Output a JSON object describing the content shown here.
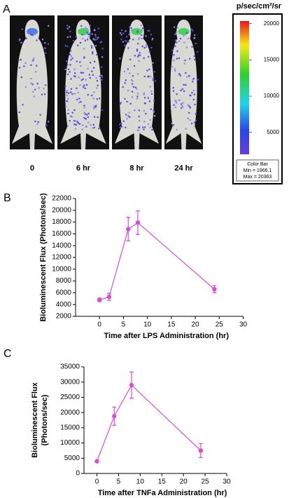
{
  "panel_a": {
    "panel_label": "A",
    "labels": [
      "0",
      "6 hr",
      "8 hr",
      "24 hr"
    ],
    "colorbar": {
      "unit": "p/sec/cm²/sr",
      "title": "Color Bar",
      "min": {
        "value": 1966.1,
        "label": "Min = 1966.1"
      },
      "max": {
        "value": 20363,
        "label": "Max = 20363"
      },
      "ticks": [
        5000,
        10000,
        15000,
        20000
      ]
    }
  },
  "chart_data": [
    {
      "type": "line",
      "panel_label": "B",
      "xlabel": "Time after LPS Administration (hr)",
      "ylabel": "Bioluminescent Flux (Photons/sec)",
      "xlim": [
        -5,
        30
      ],
      "xticks": [
        0,
        5,
        10,
        15,
        20,
        25,
        30
      ],
      "ylim": [
        2000,
        22000
      ],
      "yticks": [
        2000,
        4000,
        6000,
        8000,
        10000,
        12000,
        14000,
        16000,
        18000,
        20000,
        22000
      ],
      "series": [
        {
          "color": "#d24fd6",
          "x": [
            0,
            2,
            6,
            8,
            24
          ],
          "values": [
            4800,
            5300,
            16800,
            17900,
            6600
          ],
          "errors": [
            300,
            600,
            2000,
            2000,
            600
          ]
        }
      ]
    },
    {
      "type": "line",
      "panel_label": "C",
      "xlabel": "Time after TNFa Administration (hr)",
      "ylabel": [
        "Bioluminescent Flux",
        "(Photons/sec)"
      ],
      "xlim": [
        -3,
        30
      ],
      "xticks": [
        0,
        5,
        10,
        15,
        20,
        25,
        30
      ],
      "ylim": [
        0,
        35000
      ],
      "yticks": [
        0,
        5000,
        10000,
        15000,
        20000,
        25000,
        30000,
        35000
      ],
      "series": [
        {
          "color": "#d24fd6",
          "x": [
            0,
            4,
            8,
            24
          ],
          "values": [
            4000,
            18800,
            29000,
            7500
          ],
          "errors": [
            0,
            3000,
            4300,
            2300
          ]
        }
      ]
    }
  ]
}
